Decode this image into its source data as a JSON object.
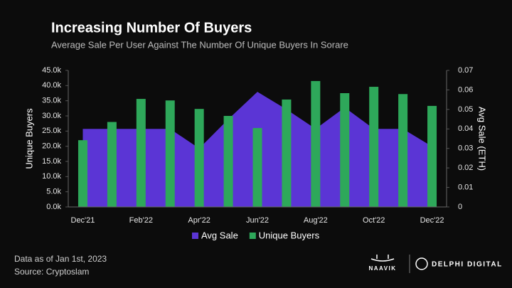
{
  "chart_data": {
    "type": "combo",
    "title": "Increasing Number Of Buyers",
    "subtitle": "Average Sale Per User Against The Number Of Unique Buyers In Sorare",
    "ylabel": "Unique Buyers",
    "y2label": "Avg Sale (ETH)",
    "categories": [
      "Dec'21",
      null,
      "Feb'22",
      null,
      "Apr'22",
      null,
      "Jun'22",
      null,
      "Aug'22",
      null,
      "Oct'22",
      null,
      "Dec'22"
    ],
    "series": [
      {
        "name": "Avg Sale",
        "type": "area",
        "axis": "y2",
        "color": "#5b35d5",
        "values": [
          0.04,
          0.04,
          0.04,
          0.04,
          0.03,
          0.045,
          0.059,
          0.05,
          0.04,
          0.051,
          0.04,
          0.04,
          0.031
        ]
      },
      {
        "name": "Unique Buyers",
        "type": "bar",
        "color": "#2ea85a",
        "values": [
          22000,
          28000,
          35600,
          35100,
          32300,
          30000,
          26000,
          35400,
          41500,
          37500,
          39600,
          37200,
          33300
        ]
      }
    ],
    "ylim": [
      0,
      45000
    ],
    "yticks": [
      {
        "value": 0,
        "label": "0.0k"
      },
      {
        "value": 5000,
        "label": "5.0k"
      },
      {
        "value": 10000,
        "label": "10.0k"
      },
      {
        "value": 15000,
        "label": "15.0k"
      },
      {
        "value": 20000,
        "label": "20.0k"
      },
      {
        "value": 25000,
        "label": "25.0k"
      },
      {
        "value": 30000,
        "label": "30.0k"
      },
      {
        "value": 35000,
        "label": "35.0k"
      },
      {
        "value": 40000,
        "label": "40.0k"
      },
      {
        "value": 45000,
        "label": "45.0k"
      }
    ],
    "y2lim": [
      0,
      0.07
    ],
    "y2ticks": [
      0,
      0.01,
      0.02,
      0.03,
      0.04,
      0.05,
      0.06,
      0.07
    ],
    "legend": "bottom"
  },
  "footer": {
    "note": "Data as of Jan 1st, 2023",
    "source": "Source: Cryptoslam",
    "logo_left": "NAAVIK",
    "logo_right": "DELPHI DIGITAL"
  }
}
